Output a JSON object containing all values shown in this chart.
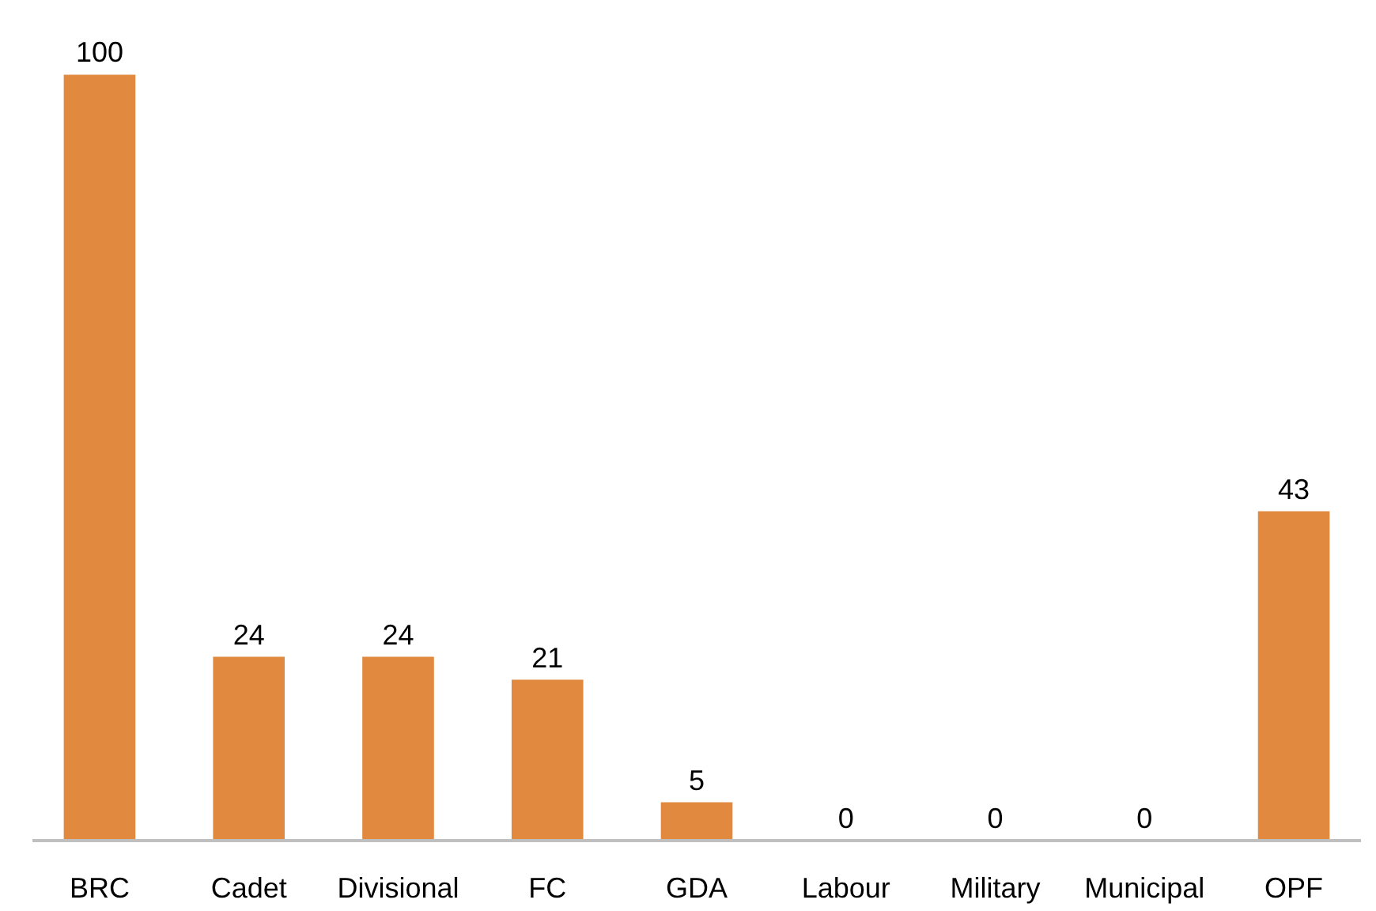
{
  "chart_data": {
    "type": "bar",
    "categories": [
      "BRC",
      "Cadet",
      "Divisional",
      "FC",
      "GDA",
      "Labour",
      "Military",
      "Municipal",
      "OPF"
    ],
    "values": [
      100,
      24,
      24,
      21,
      5,
      0,
      0,
      0,
      43
    ],
    "color": "#e0893f",
    "data_labels": true
  }
}
